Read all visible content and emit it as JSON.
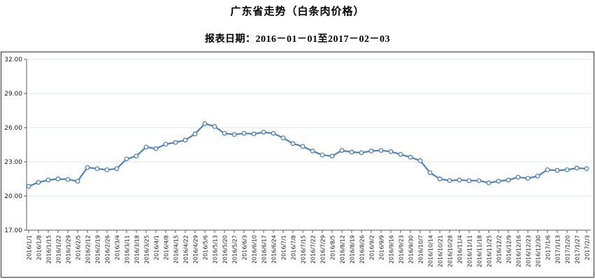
{
  "page": {
    "title": "广东省走势（白条肉价格）",
    "subtitle": "报表日期：2016－01－01至2017－02－03"
  },
  "chart_data": {
    "type": "line",
    "title": "广东省走势（白条肉价格）",
    "subtitle": "报表日期：2016－01－01至2017－02－03",
    "x": [
      "2016/1/1",
      "2016/1/8",
      "2016/1/15",
      "2016/1/22",
      "2016/1/29",
      "2016/2/5",
      "2016/2/12",
      "2016/2/19",
      "2016/2/26",
      "2016/3/4",
      "2016/3/11",
      "2016/3/18",
      "2016/3/25",
      "2016/4/1",
      "2016/4/8",
      "2016/4/15",
      "2016/4/22",
      "2016/4/29",
      "2016/5/6",
      "2016/5/13",
      "2016/5/20",
      "2016/5/27",
      "2016/6/3",
      "2016/6/10",
      "2016/6/17",
      "2016/6/24",
      "2016/7/1",
      "2016/7/8",
      "2016/7/15",
      "2016/7/22",
      "2016/7/29",
      "2016/8/5",
      "2016/8/12",
      "2016/8/19",
      "2016/8/26",
      "2016/9/2",
      "2016/9/9",
      "2016/9/16",
      "2016/9/23",
      "2016/9/30",
      "2016/10/7",
      "2016/10/14",
      "2016/10/21",
      "2016/10/28",
      "2016/11/4",
      "2016/11/11",
      "2016/11/18",
      "2016/11/25",
      "2016/12/2",
      "2016/12/9",
      "2016/12/16",
      "2016/12/23",
      "2016/12/30",
      "2017/1/6",
      "2017/1/13",
      "2017/1/20",
      "2017/1/27",
      "2017/2/3"
    ],
    "series": [
      {
        "name": "白条肉价格",
        "values": [
          20.85,
          21.2,
          21.4,
          21.5,
          21.45,
          21.3,
          22.5,
          22.4,
          22.3,
          22.4,
          23.25,
          23.5,
          24.3,
          24.15,
          24.55,
          24.7,
          24.9,
          25.45,
          26.35,
          26.1,
          25.5,
          25.4,
          25.5,
          25.45,
          25.6,
          25.5,
          25.1,
          24.6,
          24.35,
          23.95,
          23.6,
          23.5,
          24.0,
          23.85,
          23.8,
          23.95,
          24.0,
          23.9,
          23.65,
          23.4,
          23.1,
          22.05,
          21.5,
          21.35,
          21.4,
          21.35,
          21.35,
          21.15,
          21.3,
          21.4,
          21.65,
          21.55,
          21.75,
          22.3,
          22.25,
          22.3,
          22.45,
          22.4
        ]
      }
    ],
    "ylim": [
      17,
      32
    ],
    "yticks": [
      17,
      20,
      23,
      26,
      29,
      32
    ],
    "ytick_labels": [
      "17.00",
      "20.00",
      "23.00",
      "26.00",
      "29.00",
      "32.00"
    ],
    "grid": "horizontal",
    "legend": "none",
    "line_color": "#4F81BD",
    "marker_style": "hollow-circle",
    "marker_fill": "#FFFFFF",
    "grid_color": "#DBE5F1",
    "axis_color": "#595959",
    "label_color": "#1A1A1A"
  }
}
